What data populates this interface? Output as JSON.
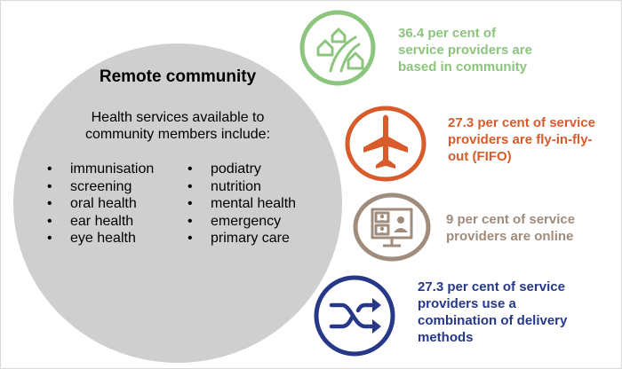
{
  "community": {
    "title": "Remote community",
    "intro_line1": "Health services available to",
    "intro_line2": "community members include:",
    "services_col1": [
      "immunisation",
      "screening",
      "oral health",
      "ear health",
      "eye health"
    ],
    "services_col2": [
      "podiatry",
      "nutrition",
      "mental health",
      "emergency",
      "primary care"
    ]
  },
  "providers": [
    {
      "icon": "houses-road-icon",
      "color": "#8cc57e",
      "lines": [
        "36.4 per cent of",
        "service providers are",
        "based in community"
      ]
    },
    {
      "icon": "airplane-icon",
      "color": "#d75b2b",
      "lines": [
        "27.3 per cent of service",
        "providers are fly-in-fly-",
        "out (FIFO)"
      ]
    },
    {
      "icon": "video-call-icon",
      "color": "#a08c7d",
      "lines": [
        "9 per cent of service",
        "providers are online"
      ]
    },
    {
      "icon": "shuffle-arrows-icon",
      "color": "#263887",
      "lines": [
        "27.3 per cent of service",
        "providers use a",
        "combination of delivery",
        "methods"
      ]
    }
  ]
}
